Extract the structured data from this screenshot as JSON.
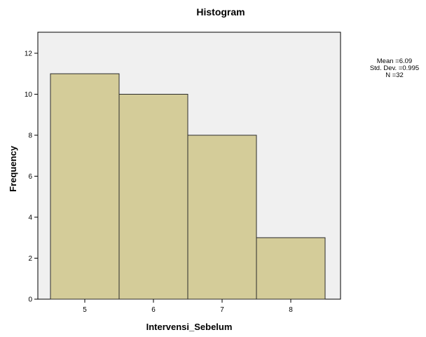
{
  "chart_data": {
    "type": "bar",
    "title": "Histogram",
    "xlabel": "Intervensi_Sebelum",
    "ylabel": "Frequency",
    "categories": [
      "5",
      "6",
      "7",
      "8"
    ],
    "values": [
      11,
      10,
      8,
      3
    ],
    "ylim": [
      0,
      12
    ],
    "yticks": [
      0,
      2,
      4,
      6,
      8,
      10,
      12
    ],
    "grid": false,
    "legend": "none",
    "stats": [
      "Mean =6.09",
      "Std. Dev. =0.995",
      "N =32"
    ],
    "colors": {
      "bar_fill": "#d4cc99",
      "bar_stroke": "#2b2b2b",
      "plot_background": "#f0f0f0",
      "axis": "#000000"
    }
  }
}
